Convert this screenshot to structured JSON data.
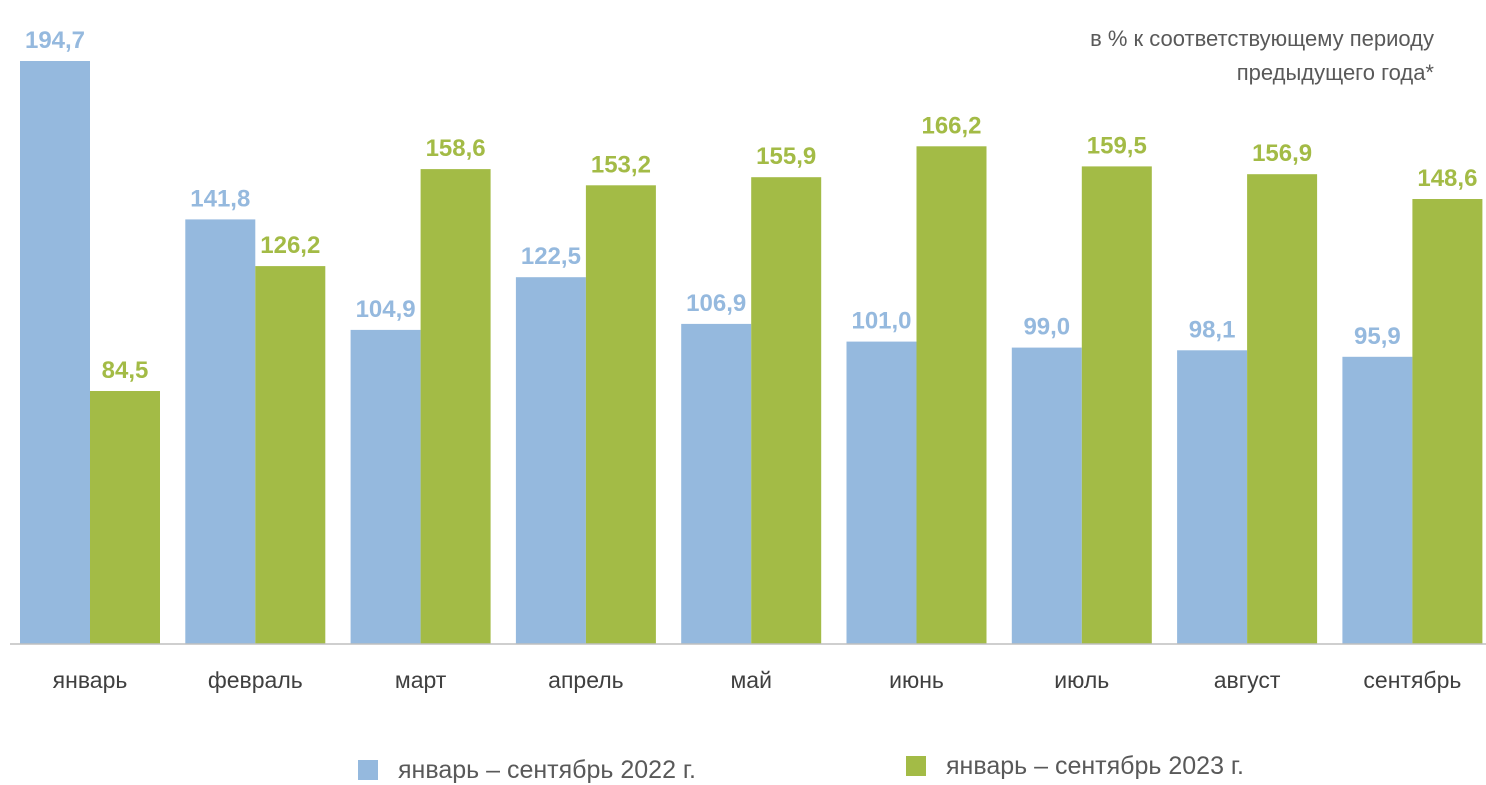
{
  "chart_data": {
    "type": "bar",
    "annotation": [
      "в % к соответствующему периоду",
      "предыдущего года*"
    ],
    "categories": [
      "январь",
      "февраль",
      "март",
      "апрель",
      "май",
      "июнь",
      "июль",
      "август",
      "сентябрь"
    ],
    "series": [
      {
        "name": "январь – сентябрь 2022 г.",
        "color": "#95B9DE",
        "values": [
          194.7,
          141.8,
          104.9,
          122.5,
          106.9,
          101.0,
          99.0,
          98.1,
          95.9
        ],
        "labels": [
          "194,7",
          "141,8",
          "104,9",
          "122,5",
          "106,9",
          "101,0",
          "99,0",
          "98,1",
          "95,9"
        ]
      },
      {
        "name": "январь – сентябрь 2023 г.",
        "color": "#A3BB46",
        "values": [
          84.5,
          126.2,
          158.6,
          153.2,
          155.9,
          166.2,
          159.5,
          156.9,
          148.6
        ],
        "labels": [
          "84,5",
          "126,2",
          "158,6",
          "153,2",
          "155,9",
          "166,2",
          "159,5",
          "156,9",
          "148,6"
        ]
      }
    ],
    "ylim": [
      0,
      194.7
    ],
    "grid": false,
    "legend_position": "bottom",
    "axis_color": "#BFBFBF",
    "tick_label_color": "#404040"
  }
}
